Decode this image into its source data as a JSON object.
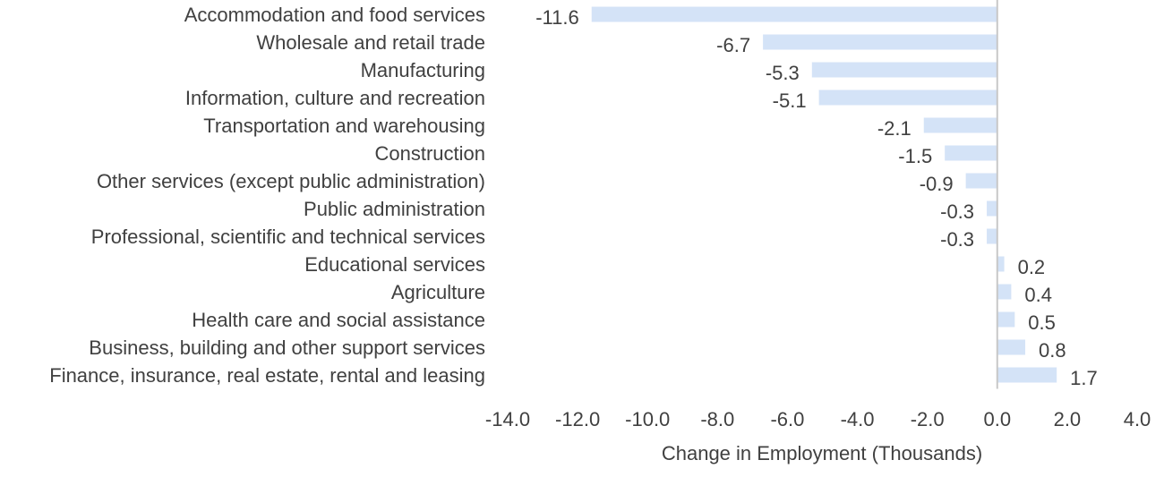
{
  "chart_data": {
    "type": "bar",
    "orientation": "horizontal",
    "categories": [
      "Accommodation and food services",
      "Wholesale and retail trade",
      "Manufacturing",
      "Information, culture and recreation",
      "Transportation and warehousing",
      "Construction",
      "Other services (except public administration)",
      "Public administration",
      "Professional, scientific and technical services",
      "Educational services",
      "Agriculture",
      "Health care and social assistance",
      "Business, building and other support services",
      "Finance, insurance, real estate, rental and leasing"
    ],
    "values": [
      -11.6,
      -6.7,
      -5.3,
      -5.1,
      -2.1,
      -1.5,
      -0.9,
      -0.3,
      -0.3,
      0.2,
      0.4,
      0.5,
      0.8,
      1.7
    ],
    "data_labels": [
      "-11.6",
      "-6.7",
      "-5.3",
      "-5.1",
      "-2.1",
      "-1.5",
      "-0.9",
      "-0.3",
      "-0.3",
      "0.2",
      "0.4",
      "0.5",
      "0.8",
      "1.7"
    ],
    "title": "",
    "xlabel": "Change in Employment (Thousands)",
    "ylabel": "",
    "xlim": [
      -14.0,
      4.0
    ],
    "x_ticks": [
      -14.0,
      -12.0,
      -10.0,
      -8.0,
      -6.0,
      -4.0,
      -2.0,
      0.0,
      2.0,
      4.0
    ],
    "x_tick_labels": [
      "-14.0",
      "-12.0",
      "-10.0",
      "-8.0",
      "-6.0",
      "-4.0",
      "-2.0",
      "0.0",
      "2.0",
      "4.0"
    ],
    "grid": false,
    "legend": "none",
    "colors": {
      "bar": "#d4e3f7",
      "zero_line": "#c8c8c8",
      "text": "#404040"
    }
  }
}
